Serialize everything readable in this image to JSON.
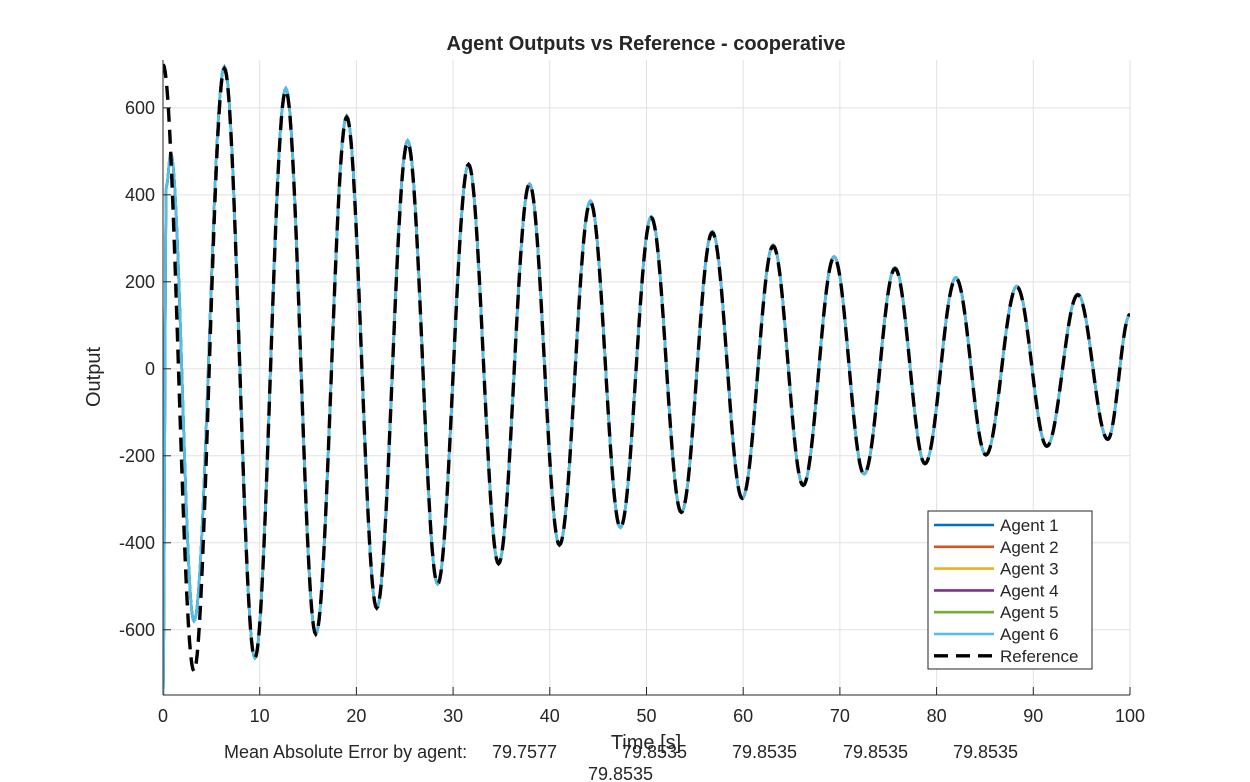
{
  "chart_data": {
    "type": "line",
    "title": "Agent Outputs vs Reference - cooperative",
    "xlabel": "Time [s]",
    "ylabel": "Output",
    "xlim": [
      0,
      100
    ],
    "ylim": [
      -750,
      710
    ],
    "xticks": [
      "0",
      "10",
      "20",
      "30",
      "40",
      "50",
      "60",
      "70",
      "80",
      "90",
      "100"
    ],
    "yticks": [
      "600",
      "400",
      "200",
      "0",
      "-200",
      "-400",
      "-600"
    ],
    "grid": true,
    "legend_position": "bottom-right",
    "series": [
      {
        "name": "Agent 1",
        "color": "#0072bd",
        "style": "solid"
      },
      {
        "name": "Agent 2",
        "color": "#d95319",
        "style": "solid"
      },
      {
        "name": "Agent 3",
        "color": "#edb120",
        "style": "solid"
      },
      {
        "name": "Agent 4",
        "color": "#7e2f8e",
        "style": "solid"
      },
      {
        "name": "Agent 5",
        "color": "#77ac30",
        "style": "solid"
      },
      {
        "name": "Agent 6",
        "color": "#4dbeee",
        "style": "solid"
      },
      {
        "name": "Reference",
        "color": "#000000",
        "style": "dashed"
      }
    ],
    "reference_peaks": [
      {
        "t": 0.0,
        "y": 700
      },
      {
        "t": 3.2,
        "y": -695
      },
      {
        "t": 6.35,
        "y": 690
      },
      {
        "t": 9.5,
        "y": -665
      },
      {
        "t": 12.7,
        "y": 640
      },
      {
        "t": 15.8,
        "y": -610
      },
      {
        "t": 19.0,
        "y": 578
      },
      {
        "t": 22.1,
        "y": -550
      },
      {
        "t": 25.3,
        "y": 520
      },
      {
        "t": 28.4,
        "y": -495
      },
      {
        "t": 31.6,
        "y": 470
      },
      {
        "t": 34.7,
        "y": -448
      },
      {
        "t": 37.9,
        "y": 425
      },
      {
        "t": 41.0,
        "y": -405
      },
      {
        "t": 44.2,
        "y": 383
      },
      {
        "t": 47.3,
        "y": -365
      },
      {
        "t": 50.5,
        "y": 347
      },
      {
        "t": 53.6,
        "y": -330
      },
      {
        "t": 56.8,
        "y": 313
      },
      {
        "t": 59.9,
        "y": -298
      },
      {
        "t": 63.1,
        "y": 282
      },
      {
        "t": 66.2,
        "y": -268
      },
      {
        "t": 69.4,
        "y": 256
      },
      {
        "t": 72.5,
        "y": -242
      },
      {
        "t": 75.7,
        "y": 230
      },
      {
        "t": 78.8,
        "y": -218
      },
      {
        "t": 82.0,
        "y": 208
      },
      {
        "t": 85.1,
        "y": -198
      },
      {
        "t": 88.3,
        "y": 188
      },
      {
        "t": 91.4,
        "y": -178
      },
      {
        "t": 94.6,
        "y": 170
      },
      {
        "t": 97.7,
        "y": -162
      },
      {
        "t": 100.0,
        "y": 125
      }
    ],
    "agent_peaks": [
      {
        "t": 0.0,
        "y": -750
      },
      {
        "t": 0.35,
        "y": 420
      },
      {
        "t": 0.8,
        "y": 495
      },
      {
        "t": 3.2,
        "y": -580
      },
      {
        "t": 6.35,
        "y": 695
      },
      {
        "t": 9.5,
        "y": -665
      },
      {
        "t": 12.7,
        "y": 645
      },
      {
        "t": 15.8,
        "y": -610
      },
      {
        "t": 19.0,
        "y": 582
      },
      {
        "t": 22.1,
        "y": -550
      },
      {
        "t": 25.3,
        "y": 525
      },
      {
        "t": 28.4,
        "y": -495
      },
      {
        "t": 31.6,
        "y": 470
      },
      {
        "t": 34.7,
        "y": -448
      },
      {
        "t": 37.9,
        "y": 425
      },
      {
        "t": 41.0,
        "y": -405
      },
      {
        "t": 44.2,
        "y": 386
      },
      {
        "t": 47.3,
        "y": -365
      },
      {
        "t": 50.5,
        "y": 350
      },
      {
        "t": 53.6,
        "y": -330
      },
      {
        "t": 56.8,
        "y": 316
      },
      {
        "t": 59.9,
        "y": -298
      },
      {
        "t": 63.1,
        "y": 285
      },
      {
        "t": 66.2,
        "y": -268
      },
      {
        "t": 69.4,
        "y": 258
      },
      {
        "t": 72.5,
        "y": -242
      },
      {
        "t": 75.7,
        "y": 233
      },
      {
        "t": 78.8,
        "y": -218
      },
      {
        "t": 82.0,
        "y": 210
      },
      {
        "t": 85.1,
        "y": -198
      },
      {
        "t": 88.3,
        "y": 190
      },
      {
        "t": 91.4,
        "y": -178
      },
      {
        "t": 94.6,
        "y": 172
      },
      {
        "t": 97.7,
        "y": -162
      },
      {
        "t": 100.0,
        "y": 125
      }
    ],
    "annotation": {
      "label": "Mean Absolute Error by agent:",
      "values": [
        "79.7577",
        "79.8535",
        "79.8535",
        "79.8535",
        "79.8535",
        "79.8535"
      ]
    }
  }
}
